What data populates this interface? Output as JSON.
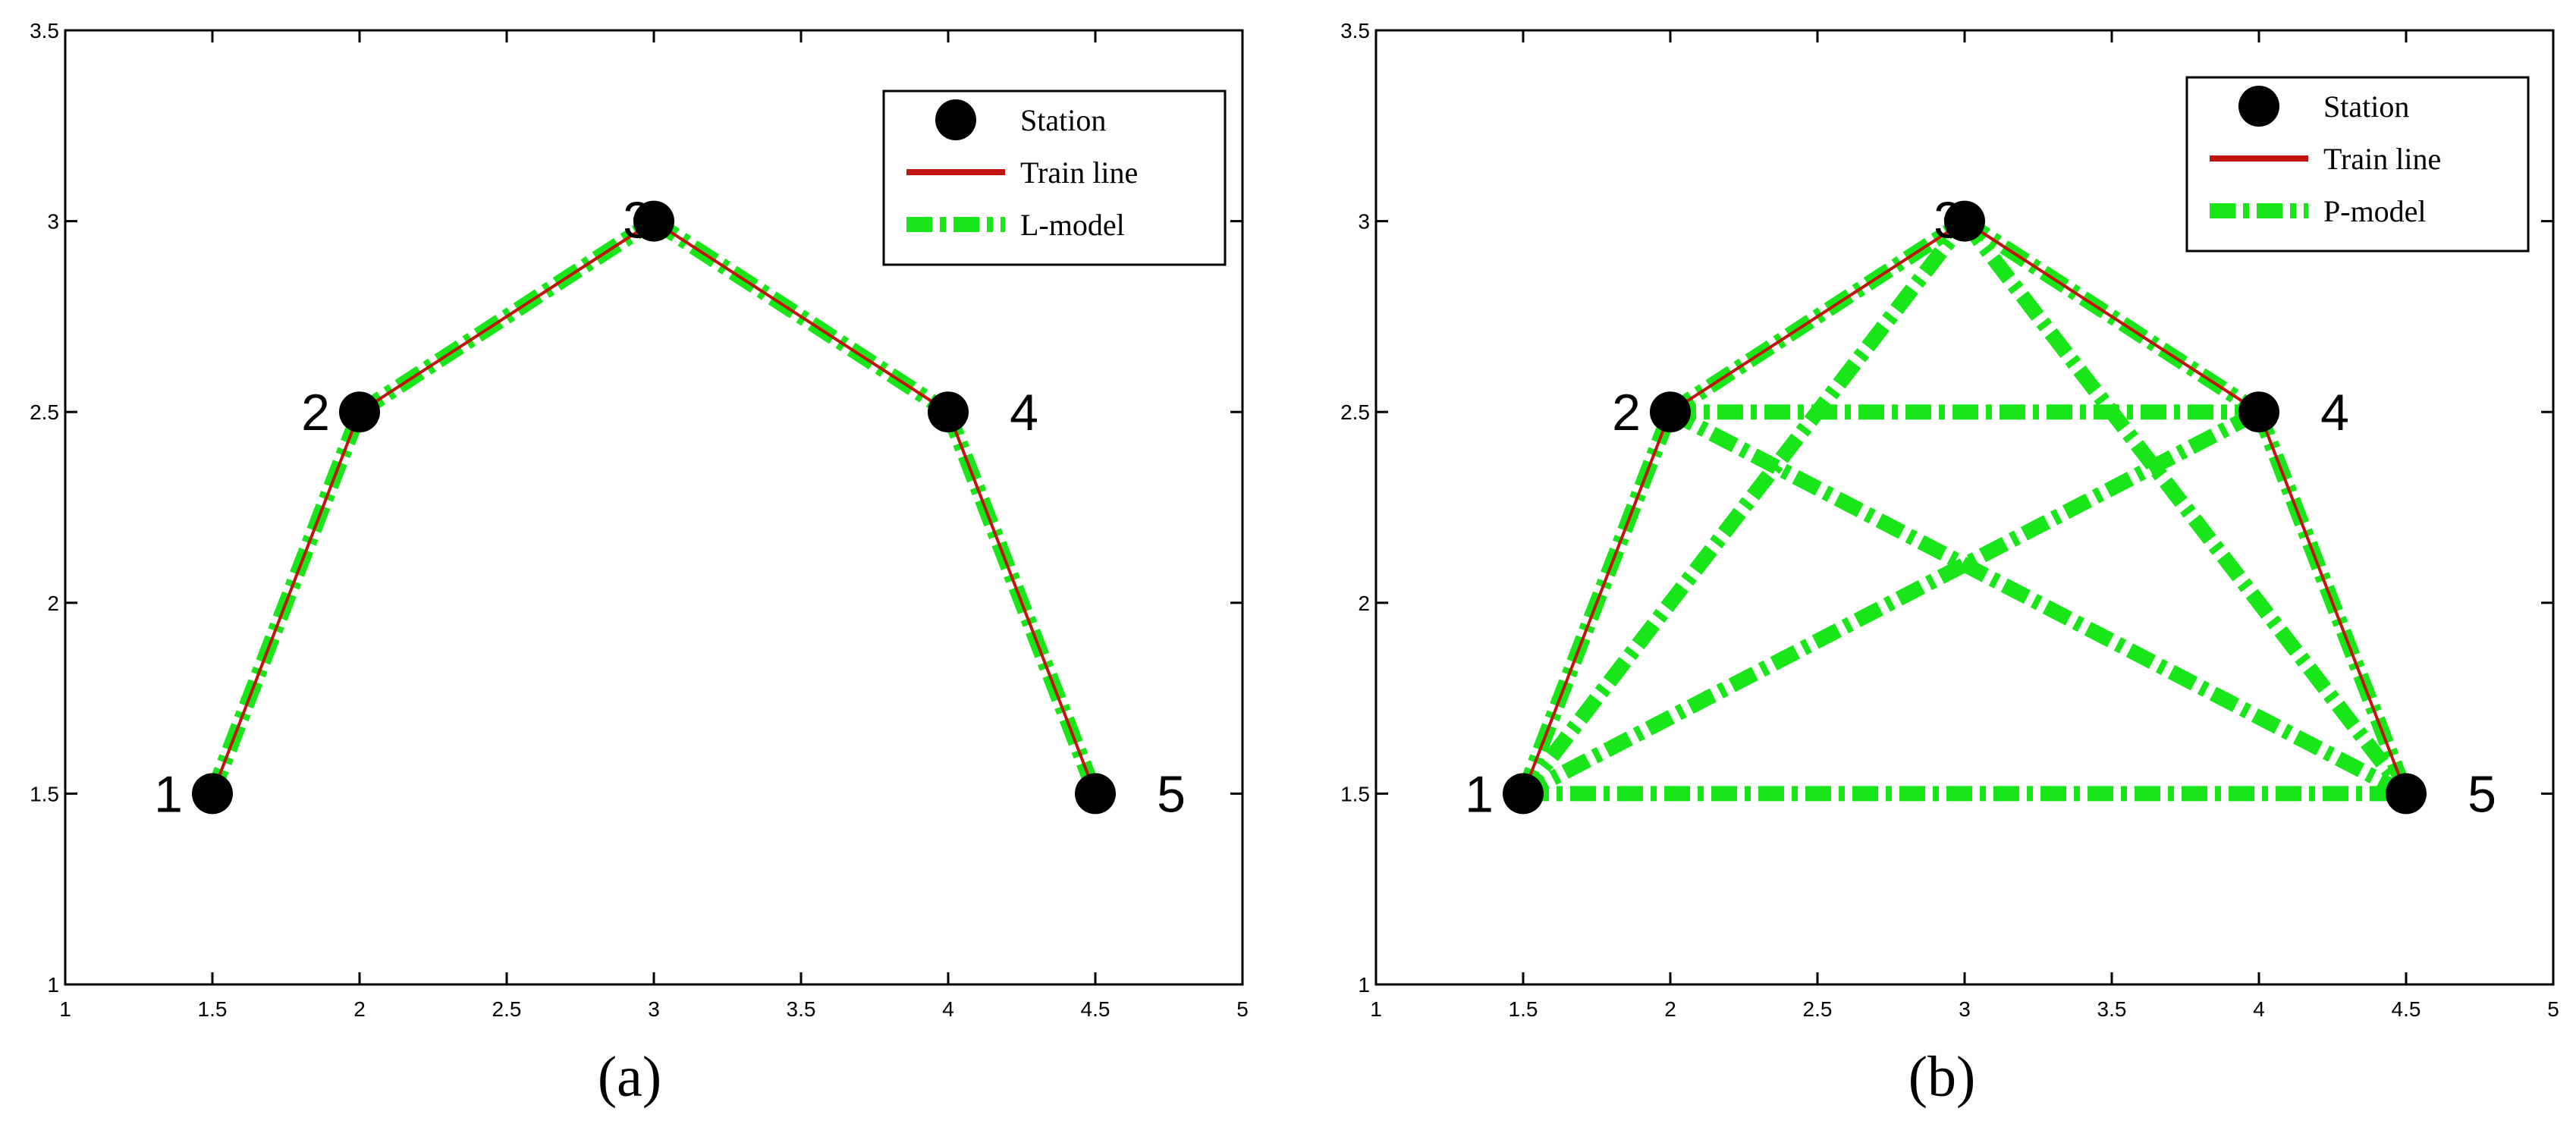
{
  "colors": {
    "station": "#000000",
    "train_line": "#c0150f",
    "model_line": "#19e619",
    "axis": "#000000",
    "background": "#ffffff"
  },
  "chart_data": [
    {
      "type": "line",
      "panel_label": "(a)",
      "xlim": [
        1,
        5
      ],
      "ylim": [
        1,
        3.5
      ],
      "x_ticks": [
        "1",
        "1.5",
        "2",
        "2.5",
        "3",
        "3.5",
        "4",
        "4.5",
        "5"
      ],
      "y_ticks": [
        "1",
        "1.5",
        "2",
        "2.5",
        "3",
        "3.5"
      ],
      "grid": false,
      "legend_position": "top-right",
      "stations": [
        {
          "label": "1",
          "x": 1.5,
          "y": 1.5
        },
        {
          "label": "2",
          "x": 2,
          "y": 2.5
        },
        {
          "label": "3",
          "x": 3,
          "y": 3
        },
        {
          "label": "4",
          "x": 4,
          "y": 2.5
        },
        {
          "label": "5",
          "x": 4.5,
          "y": 1.5
        }
      ],
      "train_line": [
        [
          1.5,
          1.5
        ],
        [
          2,
          2.5
        ],
        [
          3,
          3
        ],
        [
          4,
          2.5
        ],
        [
          4.5,
          1.5
        ]
      ],
      "model_segments": [
        [
          [
            1.5,
            1.5
          ],
          [
            2,
            2.5
          ]
        ],
        [
          [
            2,
            2.5
          ],
          [
            3,
            3
          ]
        ],
        [
          [
            3,
            3
          ],
          [
            4,
            2.5
          ]
        ],
        [
          [
            4,
            2.5
          ],
          [
            4.5,
            1.5
          ]
        ]
      ],
      "legend": [
        "Station",
        "Train line",
        "L-model"
      ]
    },
    {
      "type": "line",
      "panel_label": "(b)",
      "xlim": [
        1,
        5
      ],
      "ylim": [
        1,
        3.5
      ],
      "x_ticks": [
        "1",
        "1.5",
        "2",
        "2.5",
        "3",
        "3.5",
        "4",
        "4.5",
        "5"
      ],
      "y_ticks": [
        "1",
        "1.5",
        "2",
        "2.5",
        "3",
        "3.5"
      ],
      "grid": false,
      "legend_position": "top-right",
      "stations": [
        {
          "label": "1",
          "x": 1.5,
          "y": 1.5
        },
        {
          "label": "2",
          "x": 2,
          "y": 2.5
        },
        {
          "label": "3",
          "x": 3,
          "y": 3
        },
        {
          "label": "4",
          "x": 4,
          "y": 2.5
        },
        {
          "label": "5",
          "x": 4.5,
          "y": 1.5
        }
      ],
      "train_line": [
        [
          1.5,
          1.5
        ],
        [
          2,
          2.5
        ],
        [
          3,
          3
        ],
        [
          4,
          2.5
        ],
        [
          4.5,
          1.5
        ]
      ],
      "model_segments": [
        [
          [
            1.5,
            1.5
          ],
          [
            2,
            2.5
          ]
        ],
        [
          [
            1.5,
            1.5
          ],
          [
            3,
            3
          ]
        ],
        [
          [
            1.5,
            1.5
          ],
          [
            4,
            2.5
          ]
        ],
        [
          [
            1.5,
            1.5
          ],
          [
            4.5,
            1.5
          ]
        ],
        [
          [
            2,
            2.5
          ],
          [
            3,
            3
          ]
        ],
        [
          [
            2,
            2.5
          ],
          [
            4,
            2.5
          ]
        ],
        [
          [
            2,
            2.5
          ],
          [
            4.5,
            1.5
          ]
        ],
        [
          [
            3,
            3
          ],
          [
            4,
            2.5
          ]
        ],
        [
          [
            3,
            3
          ],
          [
            4.5,
            1.5
          ]
        ],
        [
          [
            4,
            2.5
          ],
          [
            4.5,
            1.5
          ]
        ]
      ],
      "legend": [
        "Station",
        "Train line",
        "P-model"
      ]
    }
  ]
}
